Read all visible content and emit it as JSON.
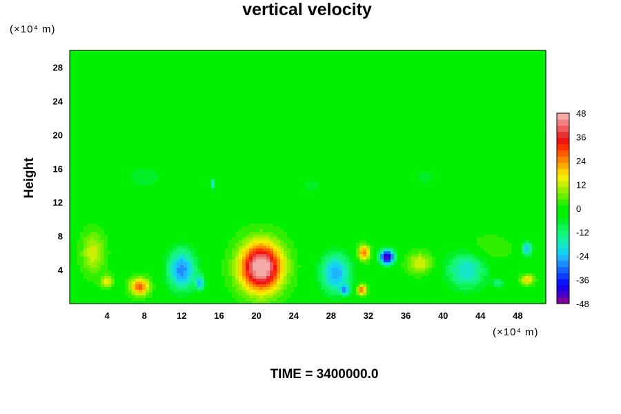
{
  "chart_data": {
    "type": "heatmap",
    "title": "vertical velocity",
    "ylabel": "Height",
    "xlabel": "",
    "x_unit": "(×10⁴ m)",
    "y_unit": "(×10⁴ m)",
    "footer": "TIME = 3400000.0",
    "xlim": [
      0,
      51
    ],
    "ylim": [
      0,
      30
    ],
    "x_ticks": [
      4,
      8,
      12,
      16,
      20,
      24,
      28,
      32,
      36,
      40,
      44,
      48
    ],
    "y_ticks": [
      4,
      8,
      12,
      16,
      20,
      24,
      28
    ],
    "colorbar": {
      "min": -48,
      "max": 48,
      "step": 4,
      "ticks": [
        48,
        36,
        24,
        12,
        0,
        -12,
        -24,
        -36,
        -48
      ],
      "colors": [
        "#7a009e",
        "#4b00c8",
        "#2200e6",
        "#0a14ff",
        "#0d3cff",
        "#1464ff",
        "#1e8cff",
        "#1eb4ff",
        "#14d2f0",
        "#14e6c8",
        "#14f0a0",
        "#14f578",
        "#0af550",
        "#00f028",
        "#00f000",
        "#00f000",
        "#30f000",
        "#64f000",
        "#96f000",
        "#c8f000",
        "#f0f000",
        "#ffd200",
        "#ffaa00",
        "#ff8200",
        "#ff5a00",
        "#ff3200",
        "#f01414",
        "#e63232",
        "#f05a5a",
        "#f08282",
        "#f5aaaa"
      ]
    },
    "background_value": 0,
    "features": [
      {
        "x": 20.5,
        "y": 4.3,
        "sx": 2.2,
        "sy": 2.8,
        "value": 52
      },
      {
        "x": 2.5,
        "y": 6.0,
        "sx": 1.2,
        "sy": 2.4,
        "value": 13
      },
      {
        "x": 7.5,
        "y": 2.0,
        "sx": 1.0,
        "sy": 1.0,
        "value": 28
      },
      {
        "x": 4.0,
        "y": 2.6,
        "sx": 0.6,
        "sy": 0.7,
        "value": 16
      },
      {
        "x": 12.0,
        "y": 4.0,
        "sx": 1.6,
        "sy": 2.5,
        "value": -28
      },
      {
        "x": 14.0,
        "y": 2.4,
        "sx": 0.5,
        "sy": 0.9,
        "value": -20
      },
      {
        "x": 28.5,
        "y": 3.6,
        "sx": 1.7,
        "sy": 2.4,
        "value": -26
      },
      {
        "x": 29.5,
        "y": 1.6,
        "sx": 0.5,
        "sy": 0.6,
        "value": -20
      },
      {
        "x": 31.5,
        "y": 6.0,
        "sx": 0.6,
        "sy": 0.9,
        "value": 26
      },
      {
        "x": 31.3,
        "y": 1.6,
        "sx": 0.5,
        "sy": 0.6,
        "value": 28
      },
      {
        "x": 34.0,
        "y": 5.5,
        "sx": 0.8,
        "sy": 0.9,
        "value": -46
      },
      {
        "x": 37.5,
        "y": 4.8,
        "sx": 1.3,
        "sy": 1.2,
        "value": 14
      },
      {
        "x": 42.5,
        "y": 4.0,
        "sx": 2.2,
        "sy": 2.4,
        "value": -20
      },
      {
        "x": 46.0,
        "y": 2.4,
        "sx": 0.7,
        "sy": 0.6,
        "value": -12
      },
      {
        "x": 49.0,
        "y": 6.5,
        "sx": 0.6,
        "sy": 0.9,
        "value": -24
      },
      {
        "x": 49.0,
        "y": 2.8,
        "sx": 0.7,
        "sy": 0.6,
        "value": 18
      },
      {
        "x": 15.3,
        "y": 14.2,
        "sx": 0.3,
        "sy": 0.6,
        "value": -20
      },
      {
        "x": 8.0,
        "y": 15.0,
        "sx": 3.0,
        "sy": 2.0,
        "value": -6
      },
      {
        "x": 26.0,
        "y": 14.0,
        "sx": 3.0,
        "sy": 2.0,
        "value": -5
      },
      {
        "x": 38.0,
        "y": 15.0,
        "sx": 3.0,
        "sy": 2.0,
        "value": -5
      },
      {
        "x": 44.5,
        "y": 6.5,
        "sx": 2.5,
        "sy": 1.5,
        "value": 6
      }
    ]
  }
}
